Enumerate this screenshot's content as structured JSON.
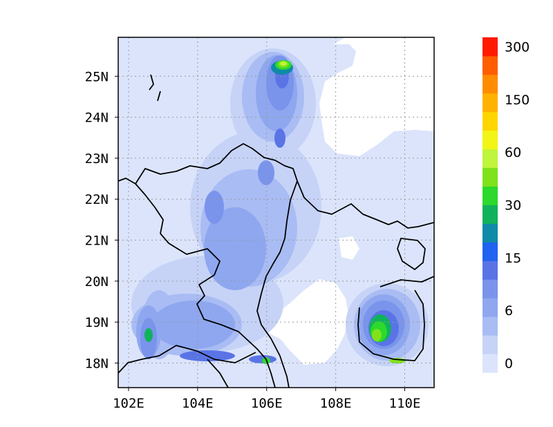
{
  "chart_data": {
    "type": "heatmap",
    "title": "",
    "xlabel": "",
    "ylabel": "",
    "xlim": [
      101.7,
      110.85
    ],
    "ylim": [
      17.4,
      25.95
    ],
    "grid": true,
    "legend": "right colorbar",
    "x_ticks": [
      {
        "value": 102,
        "label": "102E"
      },
      {
        "value": 104,
        "label": "104E"
      },
      {
        "value": 106,
        "label": "106E"
      },
      {
        "value": 108,
        "label": "108E"
      },
      {
        "value": 110,
        "label": "110E"
      }
    ],
    "y_ticks": [
      {
        "value": 18,
        "label": "18N"
      },
      {
        "value": 19,
        "label": "19N"
      },
      {
        "value": 20,
        "label": "20N"
      },
      {
        "value": 21,
        "label": "21N"
      },
      {
        "value": 22,
        "label": "22N"
      },
      {
        "value": 23,
        "label": "23N"
      },
      {
        "value": 24,
        "label": "24N"
      },
      {
        "value": 25,
        "label": "25N"
      }
    ],
    "colorbar": {
      "labels": [
        "0",
        "6",
        "15",
        "30",
        "60",
        "150",
        "300"
      ],
      "colors": [
        "#dbe4fb",
        "#c6d3f7",
        "#a9bcf3",
        "#8ea7ef",
        "#7a94ec",
        "#5a74e6",
        "#1f63f0",
        "#0f8aa7",
        "#11b25c",
        "#2cd92c",
        "#7fe21b",
        "#bff53a",
        "#f2f515",
        "#ffd500",
        "#ffb300",
        "#ff8c00",
        "#ff5d00",
        "#ff1a00"
      ]
    }
  }
}
